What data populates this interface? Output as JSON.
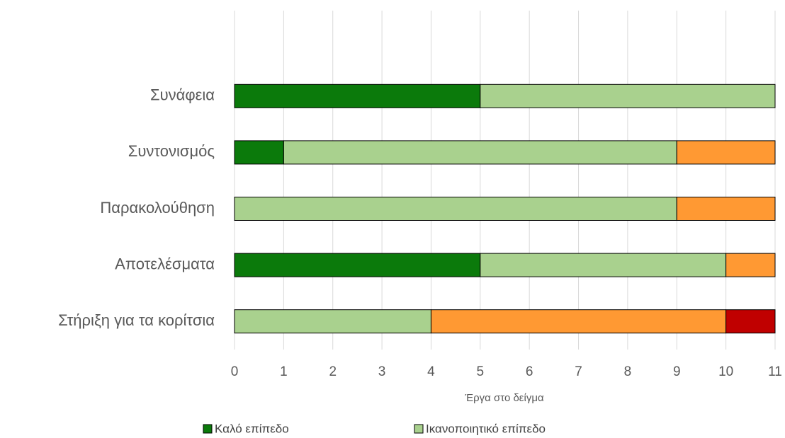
{
  "chart_data": {
    "type": "stacked-bar-horizontal",
    "categories": [
      "Συνάφεια",
      "Συντονισμός",
      "Παρακολούθηση",
      "Αποτελέσματα",
      "Στήριξη για τα κορίτσια"
    ],
    "series": [
      {
        "name": "Καλό επίπεδο",
        "color": "#0b7a0b",
        "values": [
          5,
          1,
          0,
          5,
          0
        ]
      },
      {
        "name": "Ικανοποιητικό επίπεδο",
        "color": "#a9d18e",
        "values": [
          6,
          8,
          9,
          5,
          4
        ]
      },
      {
        "color": "#ff9933",
        "values": [
          0,
          2,
          2,
          1,
          6
        ]
      },
      {
        "color": "#c00000",
        "values": [
          0,
          0,
          0,
          0,
          1
        ]
      }
    ],
    "x_label": "Έργα στο δείγμα",
    "xlim": [
      0,
      11
    ],
    "xticks": [
      0,
      1,
      2,
      3,
      4,
      5,
      6,
      7,
      8,
      9,
      10,
      11
    ],
    "grid": true
  }
}
